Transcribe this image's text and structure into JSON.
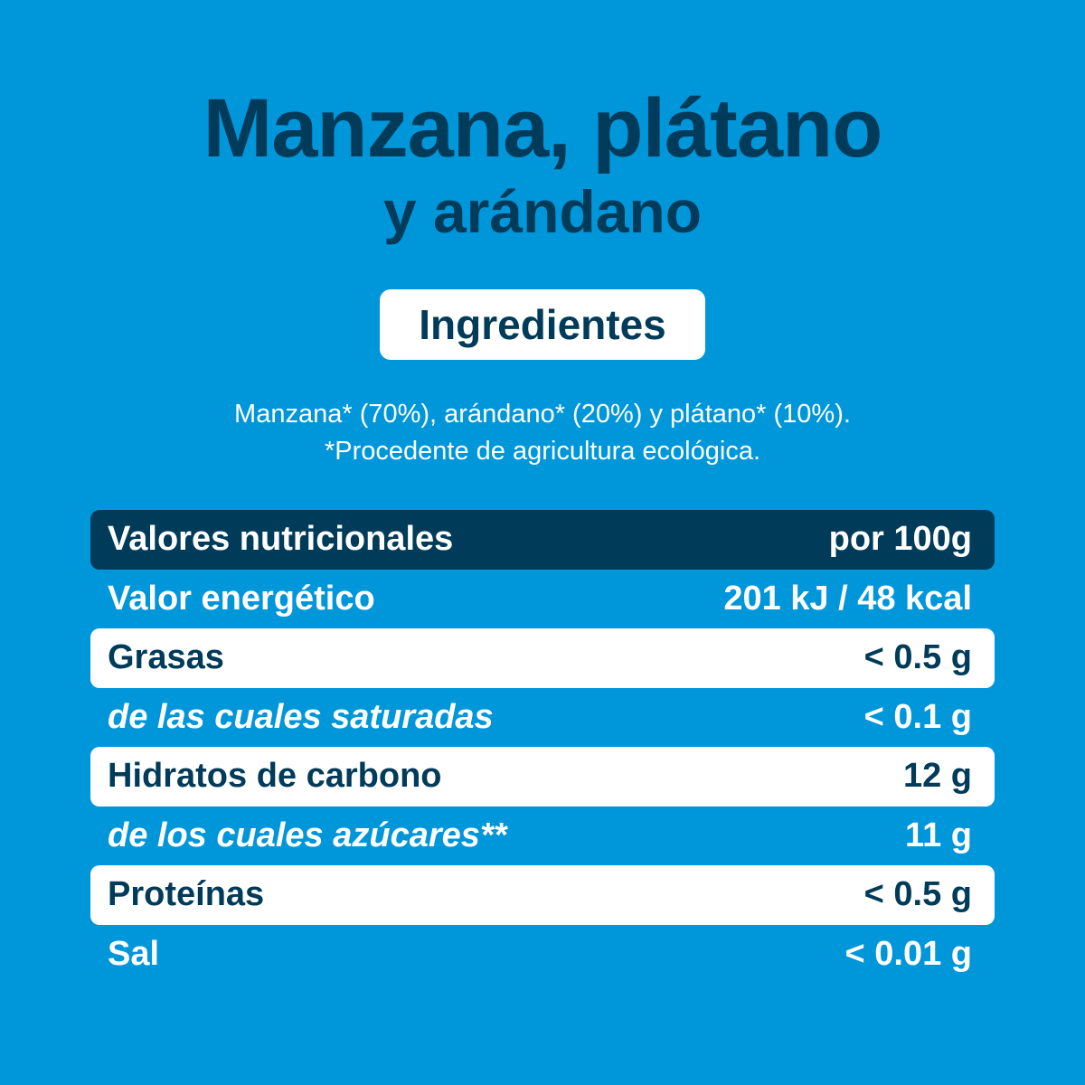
{
  "title": {
    "line1": "Manzana, plátano",
    "line2": "y arándano"
  },
  "ingredients": {
    "heading": "Ingredientes",
    "text": "Manzana* (70%), arándano* (20%) y plátano* (10%).",
    "note": "*Procedente de agricultura ecológica."
  },
  "nutrition": {
    "header": {
      "label": "Valores nutricionales",
      "value": "por 100g"
    },
    "rows": [
      {
        "label": "Valor energético",
        "value": "201 kJ / 48 kcal"
      },
      {
        "label": "Grasas",
        "value": "< 0.5 g"
      },
      {
        "label": "de las cuales saturadas",
        "value": "< 0.1 g"
      },
      {
        "label": "Hidratos de carbono",
        "value": "12 g"
      },
      {
        "label": "de los cuales azúcares**",
        "value": "11 g"
      },
      {
        "label": "Proteínas",
        "value": "< 0.5 g"
      },
      {
        "label": "Sal",
        "value": "< 0.01 g"
      }
    ]
  },
  "colors": {
    "background": "#0096da",
    "dark": "#003b5a",
    "white": "#ffffff"
  }
}
